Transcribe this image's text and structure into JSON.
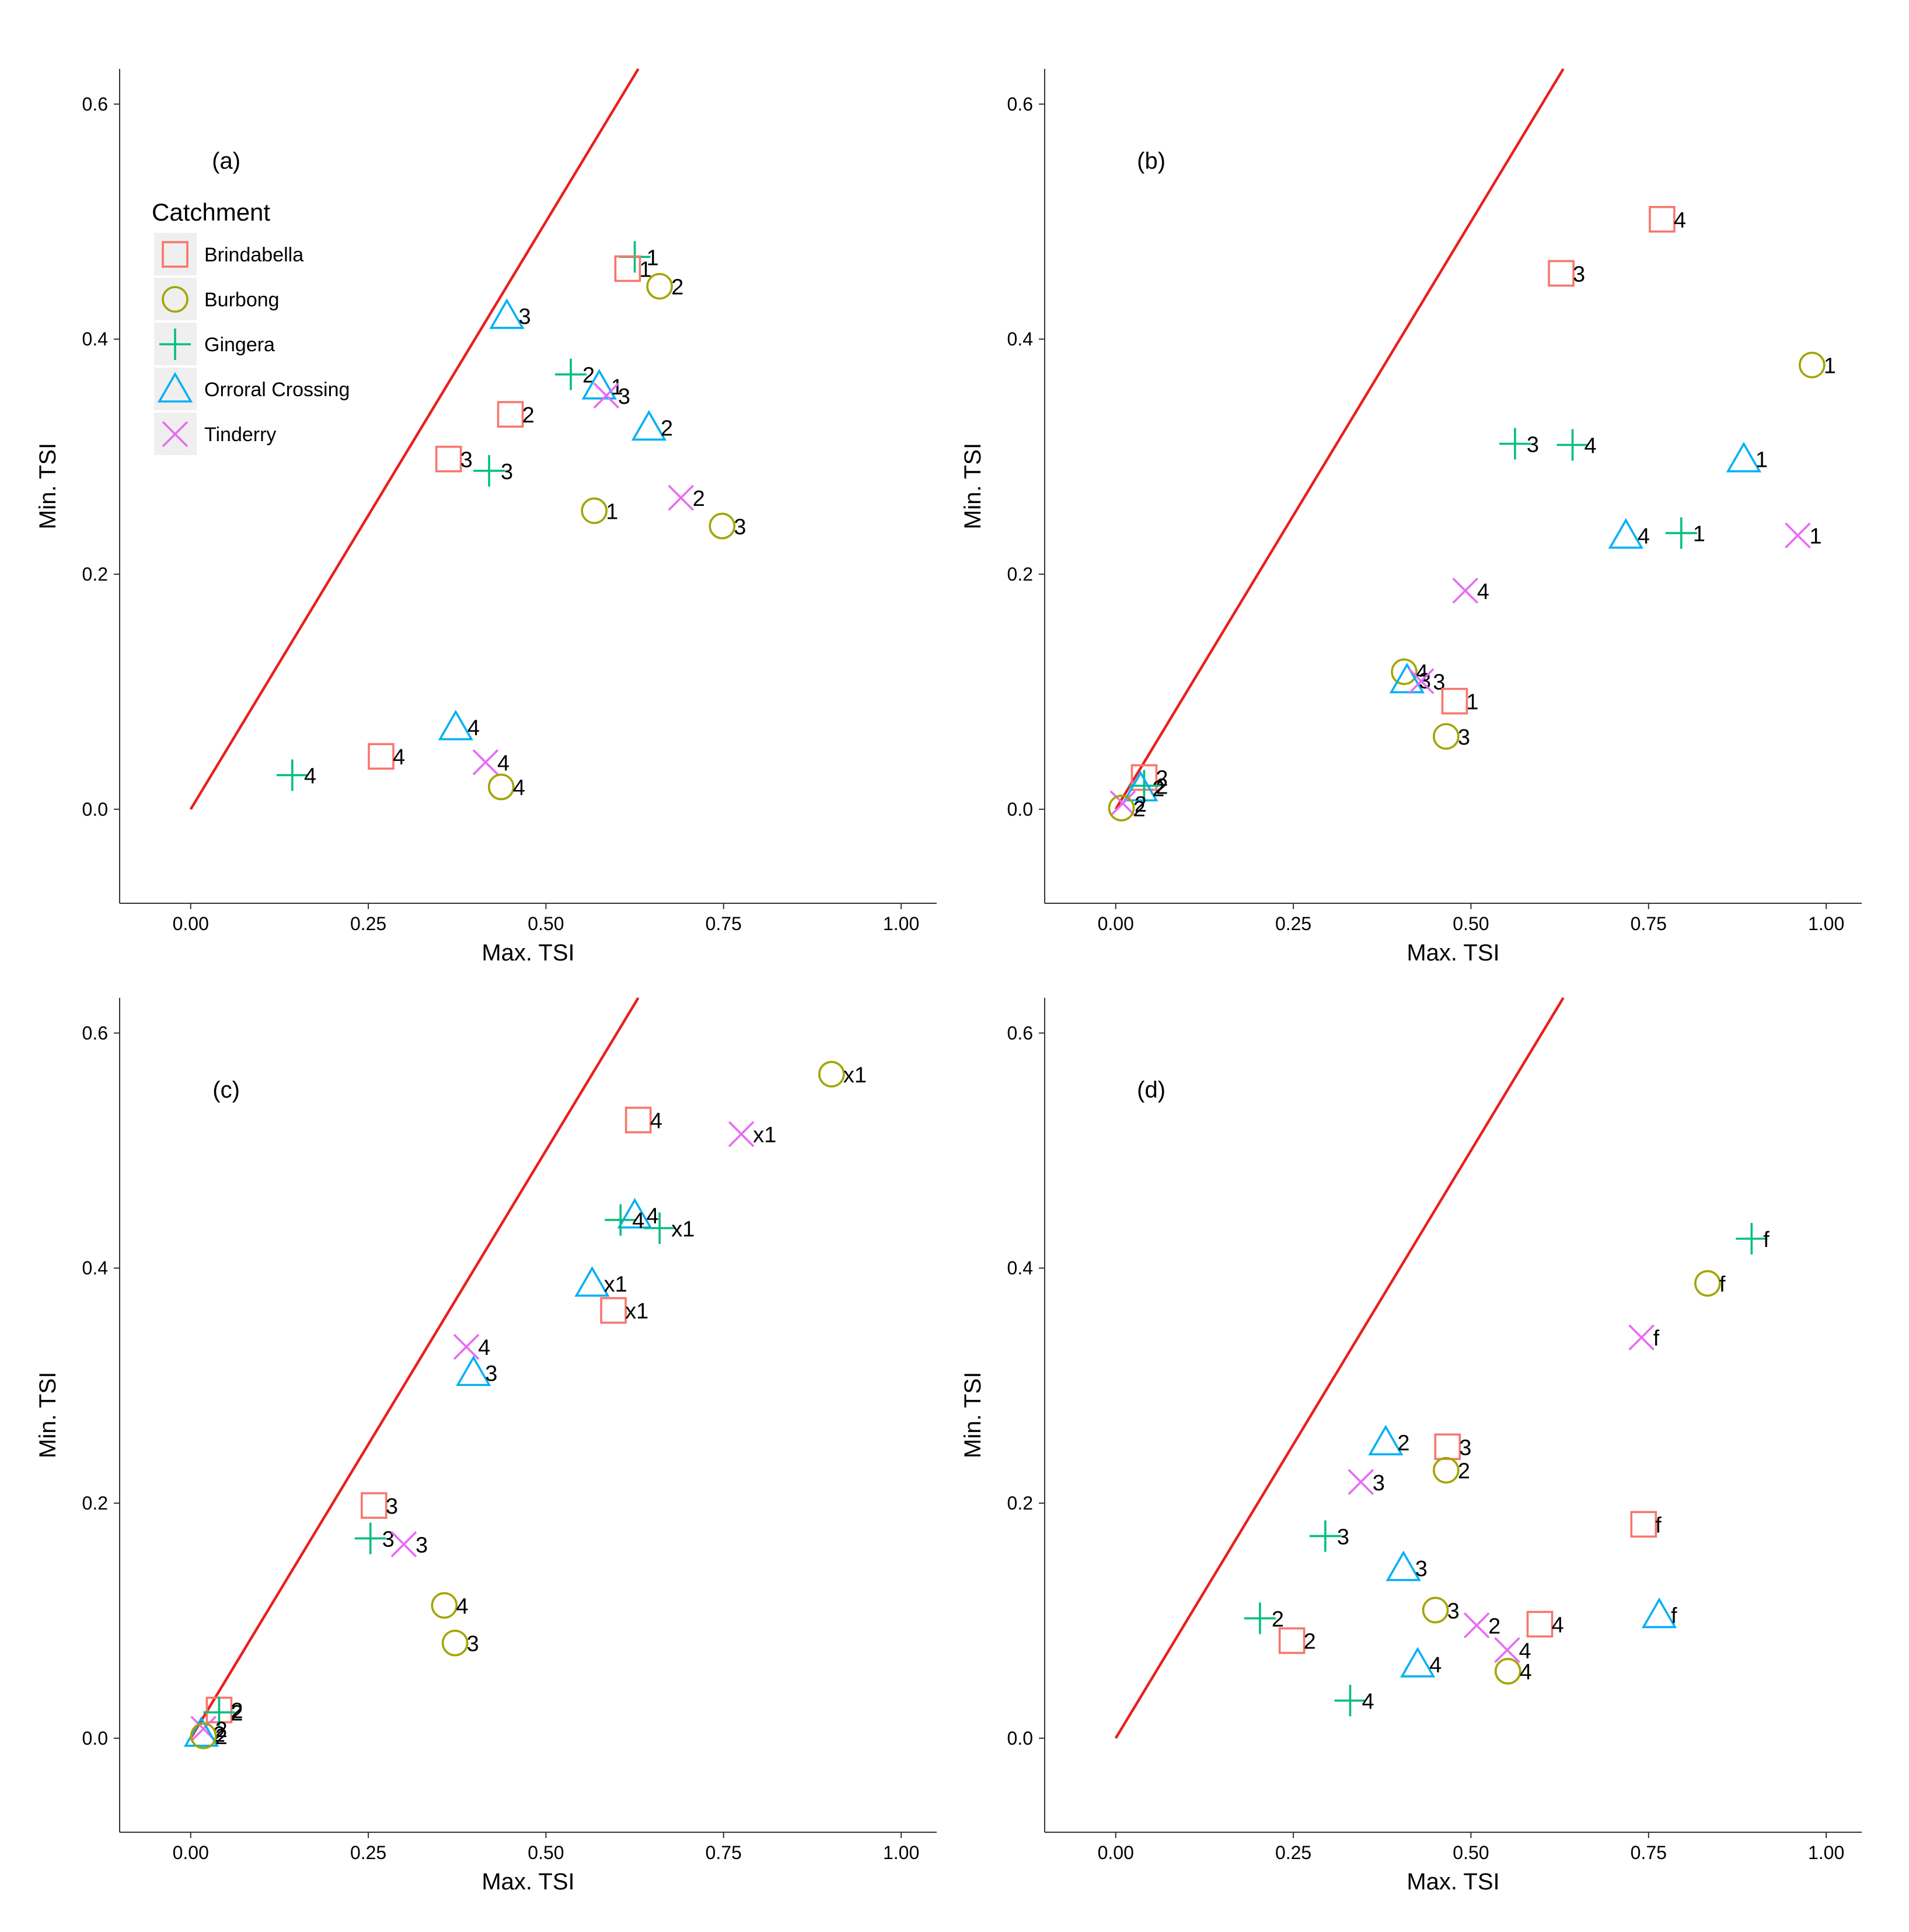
{
  "chart_data": [
    {
      "type": "scatter",
      "panel": "(a)",
      "xlabel": "Max. TSI",
      "ylabel": "Min. TSI",
      "xlim": [
        -0.1,
        1.05
      ],
      "ylim": [
        -0.08,
        0.63
      ],
      "xticks": [
        "0.00",
        "0.25",
        "0.50",
        "0.75",
        "1.00"
      ],
      "yticks": [
        "0.0",
        "0.2",
        "0.4",
        "0.6"
      ],
      "reference_line": {
        "from": [
          0,
          0
        ],
        "to": [
          0.63,
          0.63
        ],
        "color": "#e8201e"
      },
      "legend": {
        "title": "Catchment",
        "position": "top-left",
        "entries": [
          {
            "name": "Brindabella",
            "shape": "square",
            "color": "#f8766d"
          },
          {
            "name": "Burbong",
            "shape": "circle",
            "color": "#a3a500"
          },
          {
            "name": "Gingera",
            "shape": "plus",
            "color": "#00bf7d"
          },
          {
            "name": "Orroral Crossing",
            "shape": "triangle",
            "color": "#00b0f6"
          },
          {
            "name": "Tinderry",
            "shape": "cross",
            "color": "#e76bf3"
          }
        ]
      },
      "points": [
        {
          "catchment": "Gingera",
          "x": 0.625,
          "y": 0.47,
          "label": "1"
        },
        {
          "catchment": "Brindabella",
          "x": 0.615,
          "y": 0.46,
          "label": "1"
        },
        {
          "catchment": "Burbong",
          "x": 0.66,
          "y": 0.445,
          "label": "2"
        },
        {
          "catchment": "Orroral Crossing",
          "x": 0.445,
          "y": 0.42,
          "label": "3"
        },
        {
          "catchment": "Gingera",
          "x": 0.535,
          "y": 0.37,
          "label": "2"
        },
        {
          "catchment": "Orroral Crossing",
          "x": 0.575,
          "y": 0.36,
          "label": "1"
        },
        {
          "catchment": "Tinderry",
          "x": 0.585,
          "y": 0.352,
          "label": "3"
        },
        {
          "catchment": "Brindabella",
          "x": 0.45,
          "y": 0.336,
          "label": "2"
        },
        {
          "catchment": "Orroral Crossing",
          "x": 0.645,
          "y": 0.325,
          "label": "2"
        },
        {
          "catchment": "Brindabella",
          "x": 0.363,
          "y": 0.298,
          "label": "3"
        },
        {
          "catchment": "Gingera",
          "x": 0.42,
          "y": 0.288,
          "label": "3"
        },
        {
          "catchment": "Tinderry",
          "x": 0.69,
          "y": 0.265,
          "label": "2"
        },
        {
          "catchment": "Burbong",
          "x": 0.568,
          "y": 0.254,
          "label": "1"
        },
        {
          "catchment": "Burbong",
          "x": 0.748,
          "y": 0.241,
          "label": "3"
        },
        {
          "catchment": "Orroral Crossing",
          "x": 0.373,
          "y": 0.07,
          "label": "4"
        },
        {
          "catchment": "Brindabella",
          "x": 0.268,
          "y": 0.045,
          "label": "4"
        },
        {
          "catchment": "Tinderry",
          "x": 0.415,
          "y": 0.04,
          "label": "4"
        },
        {
          "catchment": "Gingera",
          "x": 0.143,
          "y": 0.029,
          "label": "4"
        },
        {
          "catchment": "Burbong",
          "x": 0.437,
          "y": 0.019,
          "label": "4"
        }
      ]
    },
    {
      "type": "scatter",
      "panel": "(b)",
      "xlabel": "Max. TSI",
      "ylabel": "Min. TSI",
      "xlim": [
        -0.1,
        1.05
      ],
      "ylim": [
        -0.08,
        0.63
      ],
      "xticks": [
        "0.00",
        "0.25",
        "0.50",
        "0.75",
        "1.00"
      ],
      "yticks": [
        "0.0",
        "0.2",
        "0.4",
        "0.6"
      ],
      "reference_line": {
        "from": [
          0,
          0
        ],
        "to": [
          0.63,
          0.63
        ],
        "color": "#e8201e"
      },
      "points": [
        {
          "catchment": "Brindabella",
          "x": 0.769,
          "y": 0.502,
          "label": "4"
        },
        {
          "catchment": "Brindabella",
          "x": 0.627,
          "y": 0.456,
          "label": "3"
        },
        {
          "catchment": "Burbong",
          "x": 0.98,
          "y": 0.378,
          "label": "1"
        },
        {
          "catchment": "Gingera",
          "x": 0.562,
          "y": 0.311,
          "label": "3"
        },
        {
          "catchment": "Gingera",
          "x": 0.643,
          "y": 0.31,
          "label": "4"
        },
        {
          "catchment": "Orroral Crossing",
          "x": 0.884,
          "y": 0.298,
          "label": "1"
        },
        {
          "catchment": "Gingera",
          "x": 0.796,
          "y": 0.235,
          "label": "1"
        },
        {
          "catchment": "Orroral Crossing",
          "x": 0.718,
          "y": 0.233,
          "label": "4"
        },
        {
          "catchment": "Tinderry",
          "x": 0.96,
          "y": 0.233,
          "label": "1"
        },
        {
          "catchment": "Tinderry",
          "x": 0.492,
          "y": 0.186,
          "label": "4"
        },
        {
          "catchment": "Burbong",
          "x": 0.406,
          "y": 0.117,
          "label": "4"
        },
        {
          "catchment": "Orroral Crossing",
          "x": 0.41,
          "y": 0.11,
          "label": "3"
        },
        {
          "catchment": "Tinderry",
          "x": 0.43,
          "y": 0.109,
          "label": "3"
        },
        {
          "catchment": "Brindabella",
          "x": 0.477,
          "y": 0.092,
          "label": "1"
        },
        {
          "catchment": "Burbong",
          "x": 0.465,
          "y": 0.062,
          "label": "3"
        },
        {
          "catchment": "Brindabella",
          "x": 0.04,
          "y": 0.027,
          "label": "2"
        },
        {
          "catchment": "Gingera",
          "x": 0.04,
          "y": 0.02,
          "label": "2"
        },
        {
          "catchment": "Orroral Crossing",
          "x": 0.035,
          "y": 0.018,
          "label": "2"
        },
        {
          "catchment": "Tinderry",
          "x": 0.01,
          "y": 0.005,
          "label": "2"
        },
        {
          "catchment": "Burbong",
          "x": 0.008,
          "y": 0.001,
          "label": "2"
        }
      ]
    },
    {
      "type": "scatter",
      "panel": "(c)",
      "xlabel": "Max. TSI",
      "ylabel": "Min. TSI",
      "xlim": [
        -0.1,
        1.05
      ],
      "ylim": [
        -0.08,
        0.63
      ],
      "xticks": [
        "0.00",
        "0.25",
        "0.50",
        "0.75",
        "1.00"
      ],
      "yticks": [
        "0.0",
        "0.2",
        "0.4",
        "0.6"
      ],
      "reference_line": {
        "from": [
          0,
          0
        ],
        "to": [
          0.63,
          0.63
        ],
        "color": "#e8201e"
      },
      "points": [
        {
          "catchment": "Burbong",
          "x": 0.902,
          "y": 0.565,
          "label": "x1"
        },
        {
          "catchment": "Brindabella",
          "x": 0.63,
          "y": 0.526,
          "label": "4"
        },
        {
          "catchment": "Tinderry",
          "x": 0.775,
          "y": 0.514,
          "label": "x1"
        },
        {
          "catchment": "Orroral Crossing",
          "x": 0.625,
          "y": 0.445,
          "label": "4"
        },
        {
          "catchment": "Gingera",
          "x": 0.605,
          "y": 0.441,
          "label": "4"
        },
        {
          "catchment": "Gingera",
          "x": 0.66,
          "y": 0.434,
          "label": "x1"
        },
        {
          "catchment": "Orroral Crossing",
          "x": 0.565,
          "y": 0.387,
          "label": "x1"
        },
        {
          "catchment": "Brindabella",
          "x": 0.595,
          "y": 0.364,
          "label": "x1"
        },
        {
          "catchment": "Tinderry",
          "x": 0.388,
          "y": 0.333,
          "label": "4"
        },
        {
          "catchment": "Orroral Crossing",
          "x": 0.398,
          "y": 0.311,
          "label": "3"
        },
        {
          "catchment": "Brindabella",
          "x": 0.258,
          "y": 0.198,
          "label": "3"
        },
        {
          "catchment": "Gingera",
          "x": 0.253,
          "y": 0.17,
          "label": "3"
        },
        {
          "catchment": "Tinderry",
          "x": 0.3,
          "y": 0.165,
          "label": "3"
        },
        {
          "catchment": "Burbong",
          "x": 0.357,
          "y": 0.113,
          "label": "4"
        },
        {
          "catchment": "Burbong",
          "x": 0.372,
          "y": 0.081,
          "label": "3"
        },
        {
          "catchment": "Brindabella",
          "x": 0.04,
          "y": 0.024,
          "label": "2"
        },
        {
          "catchment": "Gingera",
          "x": 0.04,
          "y": 0.022,
          "label": "2"
        },
        {
          "catchment": "Tinderry",
          "x": 0.018,
          "y": 0.008,
          "label": "2"
        },
        {
          "catchment": "Orroral Crossing",
          "x": 0.015,
          "y": 0.004,
          "label": "2"
        },
        {
          "catchment": "Burbong",
          "x": 0.018,
          "y": 0.002,
          "label": "2"
        }
      ]
    },
    {
      "type": "scatter",
      "panel": "(d)",
      "xlabel": "Max. TSI",
      "ylabel": "Min. TSI",
      "xlim": [
        -0.1,
        1.05
      ],
      "ylim": [
        -0.08,
        0.63
      ],
      "xticks": [
        "0.00",
        "0.25",
        "0.50",
        "0.75",
        "1.00"
      ],
      "yticks": [
        "0.0",
        "0.2",
        "0.4",
        "0.6"
      ],
      "reference_line": {
        "from": [
          0,
          0
        ],
        "to": [
          0.63,
          0.63
        ],
        "color": "#e8201e"
      },
      "points": [
        {
          "catchment": "Gingera",
          "x": 0.895,
          "y": 0.425,
          "label": "f"
        },
        {
          "catchment": "Burbong",
          "x": 0.833,
          "y": 0.387,
          "label": "f"
        },
        {
          "catchment": "Tinderry",
          "x": 0.74,
          "y": 0.341,
          "label": "f"
        },
        {
          "catchment": "Orroral Crossing",
          "x": 0.38,
          "y": 0.252,
          "label": "2"
        },
        {
          "catchment": "Brindabella",
          "x": 0.467,
          "y": 0.248,
          "label": "3"
        },
        {
          "catchment": "Burbong",
          "x": 0.465,
          "y": 0.228,
          "label": "2"
        },
        {
          "catchment": "Tinderry",
          "x": 0.345,
          "y": 0.218,
          "label": "3"
        },
        {
          "catchment": "Brindabella",
          "x": 0.743,
          "y": 0.182,
          "label": "f"
        },
        {
          "catchment": "Gingera",
          "x": 0.295,
          "y": 0.172,
          "label": "3"
        },
        {
          "catchment": "Orroral Crossing",
          "x": 0.405,
          "y": 0.145,
          "label": "3"
        },
        {
          "catchment": "Burbong",
          "x": 0.45,
          "y": 0.109,
          "label": "3"
        },
        {
          "catchment": "Orroral Crossing",
          "x": 0.765,
          "y": 0.105,
          "label": "f"
        },
        {
          "catchment": "Gingera",
          "x": 0.203,
          "y": 0.102,
          "label": "2"
        },
        {
          "catchment": "Tinderry",
          "x": 0.508,
          "y": 0.096,
          "label": "2"
        },
        {
          "catchment": "Brindabella",
          "x": 0.597,
          "y": 0.097,
          "label": "4"
        },
        {
          "catchment": "Brindabella",
          "x": 0.248,
          "y": 0.083,
          "label": "2"
        },
        {
          "catchment": "Tinderry",
          "x": 0.551,
          "y": 0.075,
          "label": "4"
        },
        {
          "catchment": "Orroral Crossing",
          "x": 0.425,
          "y": 0.063,
          "label": "4"
        },
        {
          "catchment": "Burbong",
          "x": 0.552,
          "y": 0.057,
          "label": "4"
        },
        {
          "catchment": "Gingera",
          "x": 0.33,
          "y": 0.032,
          "label": "4"
        }
      ]
    }
  ]
}
